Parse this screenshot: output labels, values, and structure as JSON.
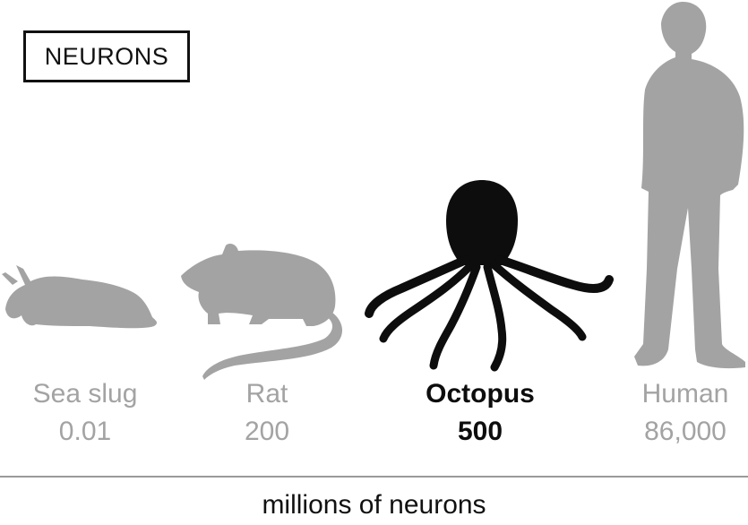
{
  "chart_data": {
    "type": "pictograph",
    "title": "NEURONS",
    "xlabel": "millions of neurons",
    "unit": "millions",
    "highlight": "Octopus",
    "categories": [
      "Sea slug",
      "Rat",
      "Octopus",
      "Human"
    ],
    "values": [
      0.01,
      200,
      500,
      86000
    ],
    "value_labels": [
      "0.01",
      "200",
      "500",
      "86,000"
    ],
    "icons": [
      "sea-slug-icon",
      "rat-icon",
      "octopus-icon",
      "human-icon"
    ],
    "colors": {
      "muted": "#a3a3a3",
      "highlight": "#0d0d0d",
      "axis": "#9a9a9a"
    }
  }
}
